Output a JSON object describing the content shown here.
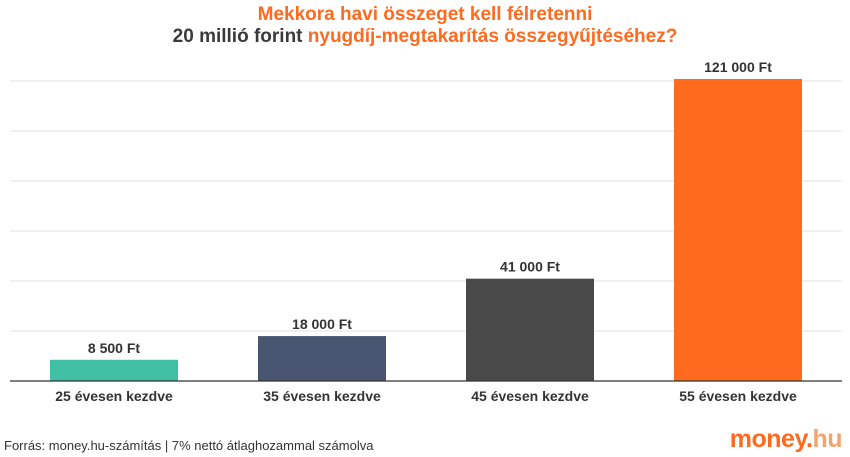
{
  "colors": {
    "accent": "#ff6a1e",
    "title_dark": "#3a3a3a",
    "bar_1": "#40bfa5",
    "bar_2": "#475570",
    "bar_3": "#4a4a4a",
    "bar_4": "#ff6a1e"
  },
  "header": {
    "line1": "Mekkora havi összeget kell félretenni",
    "line2_prefix": "20 millió forint ",
    "line2_suffix": "nyugdíj-megtakarítás összegyűjtéséhez?"
  },
  "chart_data": {
    "type": "bar",
    "categories": [
      "25 évesen kezdve",
      "35 évesen kezdve",
      "45 évesen kezdve",
      "55 évesen kezdve"
    ],
    "values": [
      8500,
      18000,
      41000,
      121000
    ],
    "data_labels": [
      "8 500 Ft",
      "18 000 Ft",
      "41 000 Ft",
      "121 000 Ft"
    ],
    "ylim": [
      0,
      121000
    ],
    "grid": true,
    "legend": "none"
  },
  "footer": {
    "source": "Forrás: money.hu-számítás | 7% nettó átlaghozammal számolva",
    "logo_part1": "money.",
    "logo_part2": "hu"
  }
}
